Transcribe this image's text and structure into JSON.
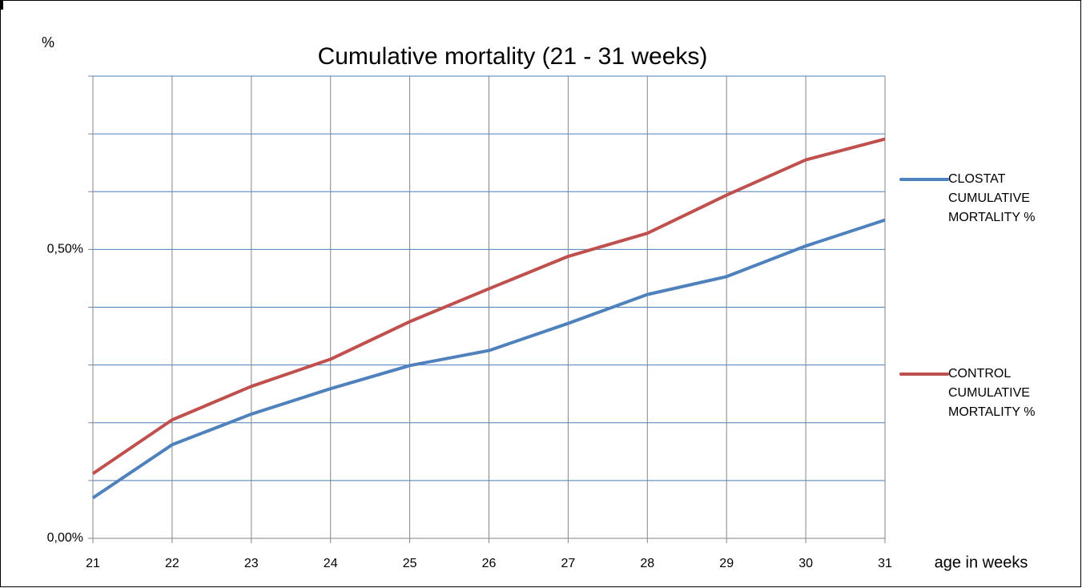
{
  "chart_data": {
    "type": "line",
    "title": "Cumulative mortality (21 - 31 weeks)",
    "y_label": "%",
    "x_label": "age in weeks",
    "x": [
      21,
      22,
      23,
      24,
      25,
      26,
      27,
      28,
      29,
      30,
      31
    ],
    "xlim": [
      21,
      31
    ],
    "xticks": [
      21,
      22,
      23,
      24,
      25,
      26,
      27,
      28,
      29,
      30,
      31
    ],
    "ylim": [
      0,
      0.8
    ],
    "yticks": [
      {
        "value": 0,
        "label": "0,00%"
      },
      {
        "value": 0.5,
        "label": "0,50%"
      }
    ],
    "ygrid": [
      0,
      0.1,
      0.2,
      0.3,
      0.4,
      0.5,
      0.6,
      0.7,
      0.8
    ],
    "grid": true,
    "legend": "right",
    "series": [
      {
        "name": "CLOSTAT CUMULATIVE MORTALITY %",
        "color": "#4f81bd",
        "values": [
          0.07,
          0.162,
          0.215,
          0.259,
          0.299,
          0.325,
          0.372,
          0.422,
          0.453,
          0.506,
          0.551
        ]
      },
      {
        "name": "CONTROL CUMULATIVE MORTALITY %",
        "color": "#c0504d",
        "values": [
          0.112,
          0.205,
          0.263,
          0.31,
          0.375,
          0.432,
          0.488,
          0.528,
          0.594,
          0.655,
          0.691
        ]
      }
    ]
  }
}
